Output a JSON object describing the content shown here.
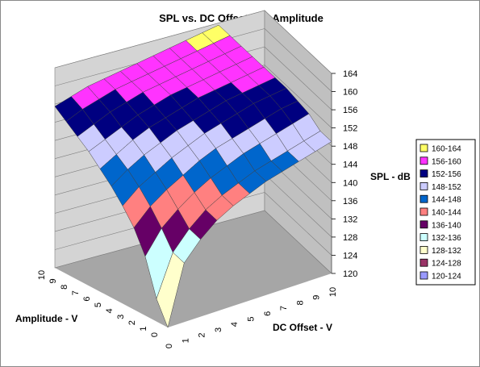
{
  "chart_data": {
    "type": "surface",
    "title": "SPL vs. DC Offset and Amplitude",
    "x_axis": {
      "label": "DC Offset - V",
      "ticks": [
        "0",
        "1",
        "2",
        "3",
        "4",
        "5",
        "6",
        "7",
        "8",
        "9",
        "10"
      ]
    },
    "y_axis": {
      "label": "Amplitude - V",
      "ticks": [
        "0",
        "1",
        "2",
        "3",
        "4",
        "5",
        "6",
        "7",
        "8",
        "9",
        "10"
      ]
    },
    "z_axis": {
      "label": "SPL - dB",
      "min": 120,
      "max": 164,
      "major": 4,
      "ticks": [
        "120",
        "124",
        "128",
        "132",
        "136",
        "140",
        "144",
        "148",
        "152",
        "156",
        "160",
        "164"
      ]
    },
    "z_values_by_amplitude": [
      [
        120.0,
        133.0,
        137.0,
        140.0,
        142.0,
        143.5,
        145.0,
        146.0,
        147.0,
        148.0,
        149.0
      ],
      [
        125.0,
        134.0,
        138.0,
        141.0,
        143.0,
        144.5,
        146.0,
        147.0,
        148.0,
        149.0,
        150.0
      ],
      [
        133.0,
        138.0,
        141.0,
        143.5,
        145.5,
        147.0,
        148.5,
        149.5,
        150.5,
        151.5,
        152.5
      ],
      [
        138.0,
        141.5,
        144.0,
        146.0,
        148.0,
        149.5,
        150.5,
        151.5,
        152.5,
        153.5,
        154.0
      ],
      [
        141.5,
        144.5,
        146.5,
        148.5,
        150.0,
        151.5,
        152.5,
        153.5,
        154.5,
        155.0,
        155.5
      ],
      [
        144.5,
        147.0,
        149.0,
        150.5,
        152.0,
        153.0,
        154.0,
        155.0,
        155.5,
        156.0,
        156.5
      ],
      [
        147.0,
        149.0,
        151.0,
        152.5,
        153.5,
        154.5,
        155.5,
        156.0,
        156.5,
        157.0,
        157.5
      ],
      [
        149.5,
        151.0,
        152.5,
        154.0,
        155.0,
        156.0,
        156.5,
        157.0,
        157.5,
        158.0,
        158.5
      ],
      [
        151.5,
        153.0,
        154.5,
        155.5,
        156.5,
        157.0,
        157.5,
        158.0,
        158.5,
        159.0,
        159.5
      ],
      [
        153.5,
        155.0,
        156.0,
        157.0,
        157.5,
        158.0,
        158.5,
        159.0,
        159.5,
        160.0,
        160.5
      ],
      [
        155.5,
        156.5,
        157.5,
        158.0,
        158.5,
        159.0,
        159.5,
        160.0,
        160.5,
        161.0,
        161.5
      ]
    ],
    "legend": {
      "placement": "right",
      "entries": [
        {
          "label": "160-164",
          "color": "#ffff66"
        },
        {
          "label": "156-160",
          "color": "#ff33ff"
        },
        {
          "label": "152-156",
          "color": "#000080"
        },
        {
          "label": "148-152",
          "color": "#ccccff"
        },
        {
          "label": "144-148",
          "color": "#0066cc"
        },
        {
          "label": "140-144",
          "color": "#ff8080"
        },
        {
          "label": "136-140",
          "color": "#660066"
        },
        {
          "label": "132-136",
          "color": "#ccffff"
        },
        {
          "label": "128-132",
          "color": "#ffffcc"
        },
        {
          "label": "124-128",
          "color": "#993366"
        },
        {
          "label": "120-124",
          "color": "#9999ff"
        }
      ]
    },
    "colors": {
      "floor": "#a6a6a6",
      "back_wall": "#d4d4d4",
      "side_wall": "#c0c0c0",
      "gridline": "#808080",
      "mesh": "#404040"
    }
  }
}
